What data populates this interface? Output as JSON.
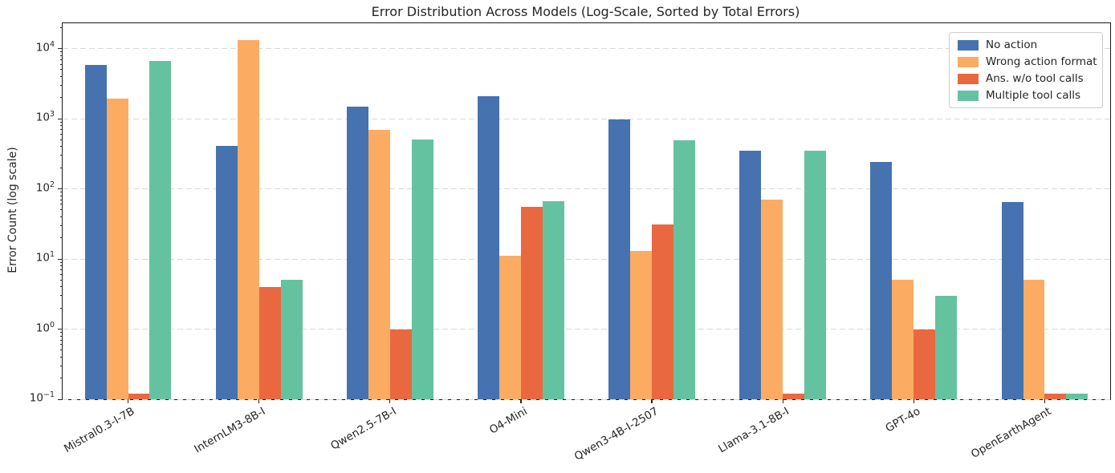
{
  "chart_data": {
    "type": "bar",
    "title": "Error Distribution Across Models (Log-Scale, Sorted by Total Errors)",
    "xlabel": "",
    "ylabel": "Error Count (log scale)",
    "y_scale": "log",
    "ylim": [
      0.1,
      23000
    ],
    "grid": "horizontal dashed at decades",
    "legend_position": "upper right",
    "y_ticks": [
      {
        "exp": -1,
        "base": "10",
        "sup": "−1"
      },
      {
        "exp": 0,
        "base": "10",
        "sup": "0"
      },
      {
        "exp": 1,
        "base": "10",
        "sup": "1"
      },
      {
        "exp": 2,
        "base": "10",
        "sup": "2"
      },
      {
        "exp": 3,
        "base": "10",
        "sup": "3"
      },
      {
        "exp": 4,
        "base": "10",
        "sup": "4"
      }
    ],
    "categories": [
      "Mistral0.3-I-7B",
      "InternLM3-8B-I",
      "Qwen2.5-7B-I",
      "O4-Mini",
      "Qwen3-4B-I-2507",
      "Llama-3.1-8B-I",
      "GPT-4o",
      "OpenEarthAgent"
    ],
    "series": [
      {
        "name": "No action",
        "color": "#4673B0",
        "values": [
          5900,
          410,
          1500,
          2100,
          980,
          350,
          240,
          65
        ]
      },
      {
        "name": "Wrong action format",
        "color": "#FBAC62",
        "values": [
          1950,
          13200,
          700,
          11,
          13,
          70,
          5,
          5
        ]
      },
      {
        "name": "Ans. w/o tool calls",
        "color": "#E9683F",
        "values": [
          0.12,
          4,
          1,
          56,
          31,
          0.12,
          1,
          0.12
        ]
      },
      {
        "name": "Multiple tool calls",
        "color": "#64C2A1",
        "values": [
          6700,
          5,
          510,
          66,
          490,
          350,
          3,
          0.12
        ]
      }
    ]
  }
}
